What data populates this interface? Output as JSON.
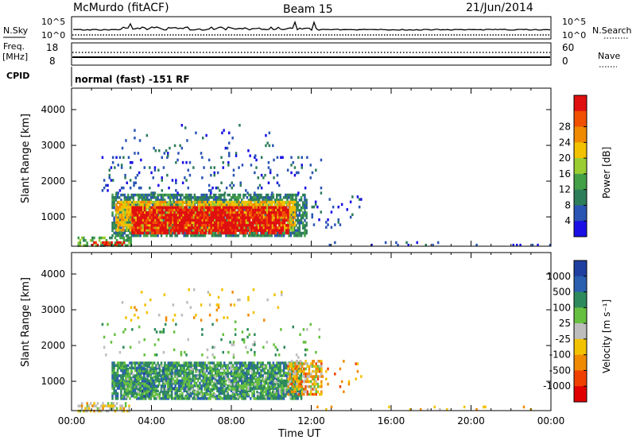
{
  "header": {
    "station": "McMurdo (fitACF)",
    "beam": "Beam 15",
    "date": "21/Jun/2014"
  },
  "status_panels": {
    "nsky_label": "N.Sky",
    "nsky_ticks": [
      "10^5",
      "10^0"
    ],
    "nsearch_label": "N.Search",
    "nsearch_ticks": [
      "10^5",
      "10^0"
    ],
    "freq_label_top": "Freq.",
    "freq_label_bottom": "[MHz]",
    "freq_ticks": [
      "18",
      "8"
    ],
    "nave_label": "Nave",
    "nave_ticks": [
      "60",
      "0"
    ],
    "cpid_label": "CPID",
    "cpid_text": "normal (fast) -151 RF"
  },
  "colors": {
    "power": [
      "#1a10e6",
      "#2a55b4",
      "#2e7d5a",
      "#43a047",
      "#9acd32",
      "#f2c200",
      "#f08a00",
      "#f05000",
      "#e01010"
    ],
    "velocity": [
      "#1f3fa0",
      "#2a5fb0",
      "#2e8a5c",
      "#66c040",
      "#bdbdbd",
      "#f2c200",
      "#f08a00",
      "#f04000",
      "#e00000"
    ]
  },
  "chart_data": [
    {
      "type": "heatmap",
      "name": "power",
      "ylabel": "Slant Range [km]",
      "xlabel": "",
      "x_ticks": [
        "00:00",
        "04:00",
        "08:00",
        "12:00",
        "16:00",
        "20:00",
        "00:00"
      ],
      "xlim": [
        0,
        24
      ],
      "y_ticks": [
        1000,
        2000,
        3000,
        4000
      ],
      "ylim": [
        180,
        4600
      ],
      "colorbar_label": "Power [dB]",
      "colorbar_ticks": [
        "4",
        "8",
        "12",
        "16",
        "20",
        "24",
        "28"
      ],
      "regions": [
        {
          "t0": 2.0,
          "t1": 11.8,
          "r0": 500,
          "r1": 1650,
          "level": 2,
          "density": 0.75
        },
        {
          "t0": 2.2,
          "t1": 11.2,
          "r0": 650,
          "r1": 1450,
          "level": 5,
          "density": 0.8
        },
        {
          "t0": 3.0,
          "t1": 10.8,
          "r0": 550,
          "r1": 1300,
          "level": 8,
          "density": 0.8
        },
        {
          "t0": 0.3,
          "t1": 3.0,
          "r0": 200,
          "r1": 450,
          "level": 3,
          "density": 0.6
        },
        {
          "t0": 1.0,
          "t1": 2.6,
          "r0": 200,
          "r1": 320,
          "level": 8,
          "density": 0.6
        },
        {
          "t0": 1.5,
          "t1": 12.5,
          "r0": 1700,
          "r1": 2700,
          "level": 1,
          "density": 0.08
        },
        {
          "t0": 2.5,
          "t1": 10.5,
          "r0": 2700,
          "r1": 3600,
          "level": 1,
          "density": 0.04
        },
        {
          "t0": 12.0,
          "t1": 14.5,
          "r0": 700,
          "r1": 1600,
          "level": 1,
          "density": 0.08
        },
        {
          "t0": 12.0,
          "t1": 24.0,
          "r0": 200,
          "r1": 320,
          "level": 1,
          "density": 0.08
        }
      ]
    },
    {
      "type": "heatmap",
      "name": "velocity",
      "ylabel": "Slant Range [km]",
      "xlabel": "Time UT",
      "x_ticks": [
        "00:00",
        "04:00",
        "08:00",
        "12:00",
        "16:00",
        "20:00",
        "00:00"
      ],
      "xlim": [
        0,
        24
      ],
      "y_ticks": [
        1000,
        2000,
        3000,
        4000
      ],
      "ylim": [
        180,
        4600
      ],
      "colorbar_label": "Velocity [m s⁻¹]",
      "colorbar_ticks": [
        "1000",
        "500",
        "100",
        "25",
        "-25",
        "-100",
        "-500",
        "-1000"
      ],
      "regions": [
        {
          "t0": 2.0,
          "t1": 11.5,
          "r0": 500,
          "r1": 1550,
          "level": 2,
          "density": 0.8
        },
        {
          "t0": 2.5,
          "t1": 11.0,
          "r0": 550,
          "r1": 1450,
          "level": 3,
          "density": 0.3
        },
        {
          "t0": 3.5,
          "t1": 5.5,
          "r0": 600,
          "r1": 1400,
          "level": 1,
          "density": 0.15
        },
        {
          "t0": 10.8,
          "t1": 12.5,
          "r0": 650,
          "r1": 1600,
          "level": 6,
          "density": 0.5
        },
        {
          "t0": 10.8,
          "t1": 12.5,
          "r0": 650,
          "r1": 1600,
          "level": 4,
          "density": 0.3
        },
        {
          "t0": 0.3,
          "t1": 3.0,
          "r0": 200,
          "r1": 420,
          "level": 4,
          "density": 0.4
        },
        {
          "t0": 0.3,
          "t1": 3.0,
          "r0": 200,
          "r1": 420,
          "level": 5,
          "density": 0.2
        },
        {
          "t0": 1.5,
          "t1": 12.5,
          "r0": 1700,
          "r1": 2700,
          "level": 3,
          "density": 0.06
        },
        {
          "t0": 2.5,
          "t1": 10.5,
          "r0": 2700,
          "r1": 3600,
          "level": 5,
          "density": 0.04
        },
        {
          "t0": 12.0,
          "t1": 14.5,
          "r0": 700,
          "r1": 1600,
          "level": 6,
          "density": 0.08
        },
        {
          "t0": 12.0,
          "t1": 24.0,
          "r0": 200,
          "r1": 320,
          "level": 5,
          "density": 0.08
        }
      ]
    }
  ]
}
